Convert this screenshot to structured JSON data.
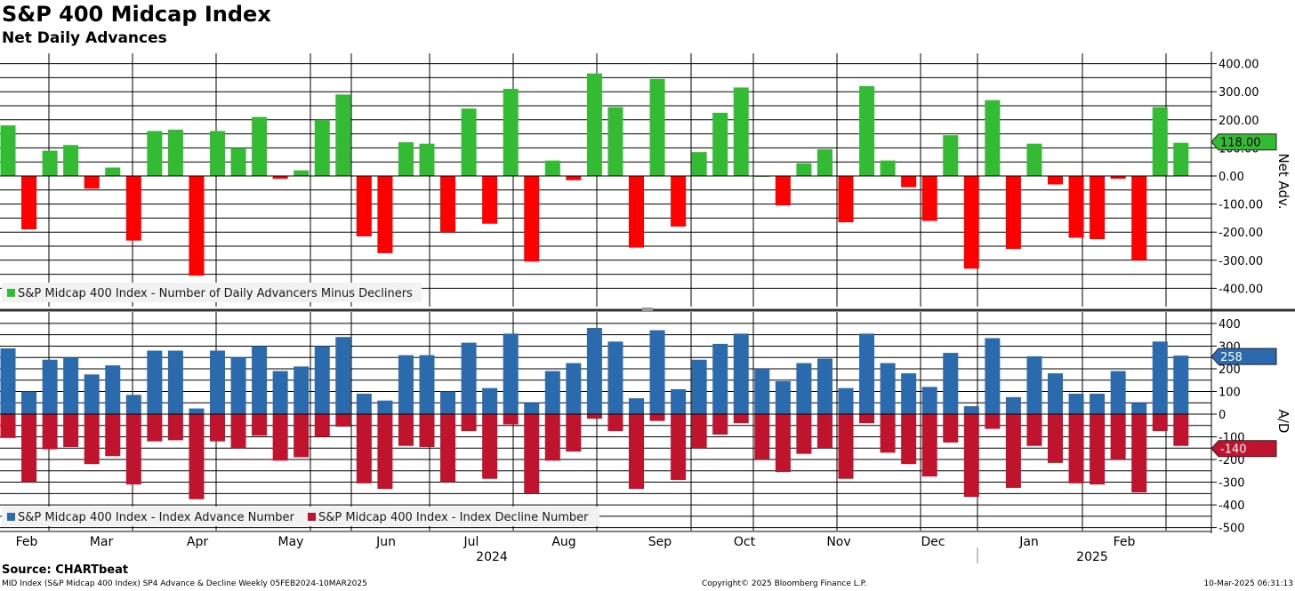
{
  "header": {
    "title": "S&P 400 Midcap Index",
    "subtitle": "Net Daily Advances"
  },
  "footer": {
    "source": "Source: CHARTbeat",
    "description": "MID Index (S&P Midcap 400 Index) SP4 Advance & Decline  Weekly 05FEB2024-10MAR2025",
    "copyright": "Copyright© 2025 Bloomberg Finance L.P.",
    "timestamp": "10-Mar-2025 06:31:13"
  },
  "colors": {
    "positive": "#33bb33",
    "negative": "#ff0000",
    "advance": "#2b6aac",
    "decline": "#c0142e",
    "grid": "#000000"
  },
  "x_axis": {
    "months": [
      "Feb",
      "Mar",
      "Apr",
      "May",
      "Jun",
      "Jul",
      "Aug",
      "Sep",
      "Oct",
      "Nov",
      "Dec",
      "Jan",
      "Feb"
    ],
    "years": [
      "2024",
      "2025"
    ]
  },
  "chart_data": [
    {
      "type": "bar",
      "ylabel": "Net Adv.",
      "ylim": [
        -460,
        430
      ],
      "yticks": [
        "400.00",
        "300.00",
        "200.00",
        "100.00",
        "0.00",
        "-100.00",
        "-200.00",
        "-300.00",
        "-400.00"
      ],
      "legend": "S&P Midcap 400 Index - Number of Daily Advancers Minus Decliners",
      "last_value_label": "118.00",
      "values": [
        180,
        -190,
        90,
        110,
        -45,
        30,
        -230,
        160,
        165,
        -355,
        160,
        100,
        210,
        -10,
        20,
        200,
        290,
        -215,
        -275,
        120,
        115,
        -200,
        240,
        -170,
        310,
        -305,
        55,
        -15,
        365,
        245,
        -255,
        345,
        -180,
        85,
        225,
        315,
        0,
        -105,
        45,
        95,
        -165,
        320,
        55,
        -40,
        -160,
        145,
        -330,
        270,
        -260,
        115,
        -30,
        -220,
        -225,
        -10,
        -300,
        245,
        118
      ]
    },
    {
      "type": "bar",
      "ylabel": "A/D",
      "ylim": [
        -530,
        430
      ],
      "yticks": [
        "400",
        "300",
        "200",
        "100",
        "0",
        "-100",
        "-200",
        "-300",
        "-400",
        "-500"
      ],
      "series": [
        {
          "name": "S&P Midcap 400 Index - Index Advance Number",
          "last_value_label": "258",
          "values": [
            290,
            100,
            240,
            250,
            175,
            215,
            85,
            280,
            280,
            25,
            280,
            250,
            300,
            190,
            210,
            300,
            340,
            90,
            60,
            260,
            260,
            100,
            315,
            115,
            355,
            50,
            190,
            225,
            380,
            320,
            70,
            370,
            110,
            240,
            310,
            355,
            200,
            145,
            225,
            245,
            115,
            355,
            225,
            180,
            120,
            270,
            35,
            335,
            75,
            255,
            180,
            90,
            90,
            190,
            50,
            320,
            258
          ]
        },
        {
          "name": "S&P Midcap 400 Index - Index Decline Number",
          "last_value_label": "-140",
          "values": [
            -105,
            -300,
            -155,
            -145,
            -220,
            -185,
            -310,
            -120,
            -115,
            -375,
            -120,
            -150,
            -95,
            -205,
            -190,
            -100,
            -55,
            -305,
            -330,
            -140,
            -145,
            -300,
            -75,
            -285,
            -45,
            -350,
            -205,
            -165,
            -20,
            -75,
            -330,
            -30,
            -290,
            -150,
            -90,
            -40,
            -200,
            -255,
            -175,
            -150,
            -285,
            -40,
            -170,
            -220,
            -275,
            -125,
            -365,
            -65,
            -325,
            -140,
            -215,
            -305,
            -310,
            -200,
            -345,
            -75,
            -140
          ]
        }
      ]
    }
  ]
}
